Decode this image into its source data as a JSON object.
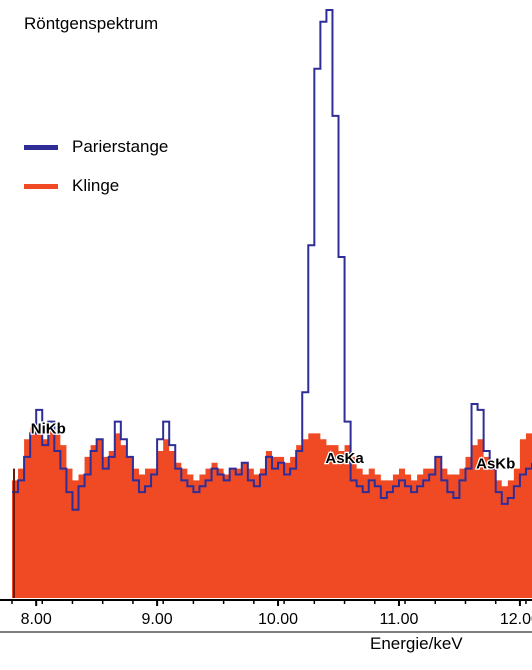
{
  "chart_data": {
    "type": "line",
    "title": "Röntgenspektrum",
    "xlabel": "Energie/keV",
    "ylabel": "",
    "xlim": [
      7.8,
      12.1
    ],
    "ylim": [
      0,
      100
    ],
    "ticks": [
      "8.00",
      "9.00",
      "10.00",
      "11.00",
      "12.00"
    ],
    "tick_values": [
      8.0,
      9.0,
      10.0,
      11.0,
      12.0
    ],
    "legend_position": "top-left",
    "grid": false,
    "series": [
      {
        "name": "Parierstange",
        "color": "#2e2e96",
        "style": "step",
        "x": [
          7.8,
          7.85,
          7.9,
          7.95,
          8.0,
          8.05,
          8.1,
          8.15,
          8.2,
          8.25,
          8.3,
          8.35,
          8.4,
          8.45,
          8.5,
          8.55,
          8.6,
          8.65,
          8.7,
          8.75,
          8.8,
          8.85,
          8.9,
          8.95,
          9.0,
          9.05,
          9.1,
          9.15,
          9.2,
          9.25,
          9.3,
          9.35,
          9.4,
          9.45,
          9.5,
          9.55,
          9.6,
          9.65,
          9.7,
          9.75,
          9.8,
          9.85,
          9.9,
          9.95,
          10.0,
          10.05,
          10.1,
          10.15,
          10.2,
          10.25,
          10.3,
          10.35,
          10.4,
          10.45,
          10.5,
          10.55,
          10.6,
          10.65,
          10.7,
          10.75,
          10.8,
          10.85,
          10.9,
          10.95,
          11.0,
          11.05,
          11.1,
          11.15,
          11.2,
          11.25,
          11.3,
          11.35,
          11.4,
          11.45,
          11.5,
          11.55,
          11.6,
          11.65,
          11.7,
          11.75,
          11.8,
          11.85,
          11.9,
          11.95,
          12.0,
          12.05,
          12.1
        ],
        "values": [
          18,
          20,
          24,
          28,
          32,
          26,
          30,
          25,
          22,
          18,
          15,
          19,
          21,
          25,
          27,
          22,
          24,
          30,
          27,
          24,
          20,
          18,
          19,
          21,
          27,
          30,
          26,
          22,
          20,
          19,
          18,
          19,
          20,
          22,
          21,
          20,
          22,
          21,
          23,
          20,
          19,
          21,
          24,
          22,
          23,
          21,
          22,
          25,
          35,
          60,
          90,
          98,
          100,
          82,
          58,
          30,
          20,
          19,
          18,
          20,
          19,
          17,
          18,
          19,
          20,
          19,
          18,
          19,
          20,
          21,
          24,
          20,
          18,
          17,
          20,
          22,
          33,
          32,
          25,
          22,
          18,
          16,
          17,
          19,
          21,
          22,
          23
        ]
      },
      {
        "name": "Klinge",
        "color": "#f04a25",
        "style": "fill",
        "x": [
          7.8,
          7.85,
          7.9,
          7.95,
          8.0,
          8.05,
          8.1,
          8.15,
          8.2,
          8.25,
          8.3,
          8.35,
          8.4,
          8.45,
          8.5,
          8.55,
          8.6,
          8.65,
          8.7,
          8.75,
          8.8,
          8.85,
          8.9,
          8.95,
          9.0,
          9.05,
          9.1,
          9.15,
          9.2,
          9.25,
          9.3,
          9.35,
          9.4,
          9.45,
          9.5,
          9.55,
          9.6,
          9.65,
          9.7,
          9.75,
          9.8,
          9.85,
          9.9,
          9.95,
          10.0,
          10.05,
          10.1,
          10.15,
          10.2,
          10.25,
          10.3,
          10.35,
          10.4,
          10.45,
          10.5,
          10.55,
          10.6,
          10.65,
          10.7,
          10.75,
          10.8,
          10.85,
          10.9,
          10.95,
          11.0,
          11.05,
          11.1,
          11.15,
          11.2,
          11.25,
          11.3,
          11.35,
          11.4,
          11.45,
          11.5,
          11.55,
          11.6,
          11.65,
          11.7,
          11.75,
          11.8,
          11.85,
          11.9,
          11.95,
          12.0,
          12.05,
          12.1
        ],
        "values": [
          20,
          22,
          27,
          29,
          28,
          27,
          29,
          28,
          26,
          22,
          20,
          21,
          24,
          26,
          27,
          24,
          25,
          28,
          26,
          24,
          22,
          21,
          22,
          22,
          25,
          27,
          25,
          23,
          22,
          21,
          20,
          21,
          22,
          23,
          22,
          21,
          22,
          22,
          23,
          22,
          21,
          22,
          25,
          24,
          24,
          23,
          24,
          26,
          27,
          28,
          28,
          27,
          26,
          26,
          25,
          26,
          24,
          22,
          21,
          22,
          21,
          20,
          20,
          21,
          22,
          21,
          20,
          21,
          22,
          22,
          24,
          22,
          21,
          21,
          22,
          24,
          26,
          27,
          24,
          22,
          20,
          19,
          20,
          22,
          27,
          28,
          26
        ]
      }
    ],
    "annotations": [
      {
        "text": "NiKb",
        "x": 8.1,
        "y": 28
      },
      {
        "text": "AsKa",
        "x": 10.55,
        "y": 23
      },
      {
        "text": "AsKb",
        "x": 11.8,
        "y": 22
      }
    ]
  }
}
